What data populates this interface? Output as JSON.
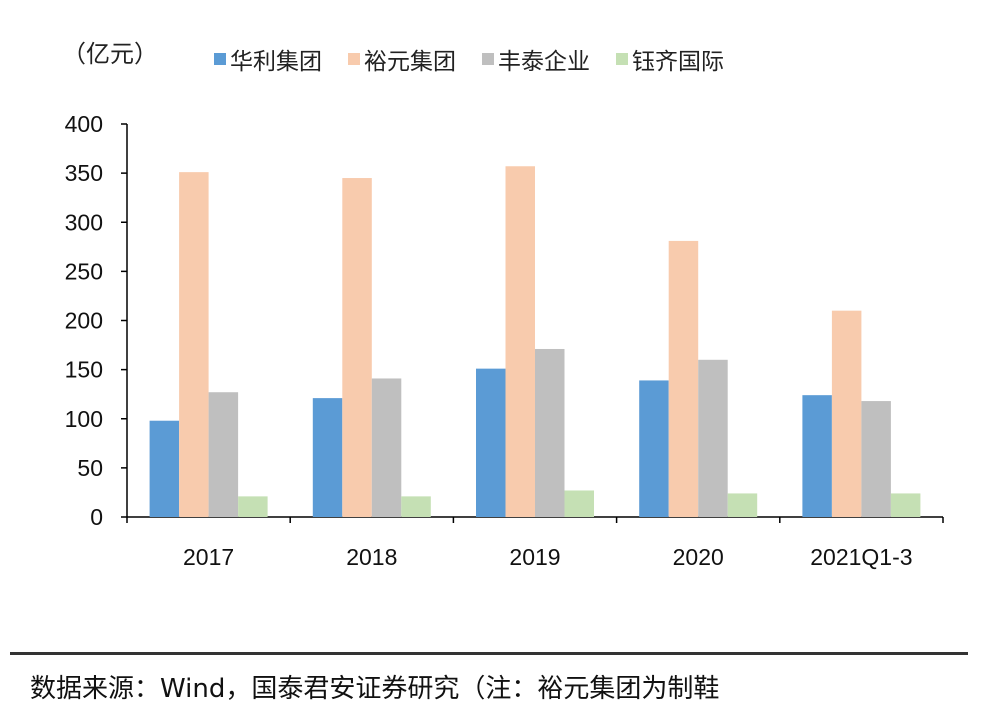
{
  "chart_data": {
    "type": "bar",
    "unit_label": "（亿元）",
    "categories": [
      "2017",
      "2018",
      "2019",
      "2020",
      "2021Q1-3"
    ],
    "series": [
      {
        "name": "华利集团",
        "color": "#5b9bd5",
        "values": [
          98,
          121,
          151,
          139,
          124
        ]
      },
      {
        "name": "裕元集团",
        "color": "#f8cbad",
        "values": [
          351,
          345,
          357,
          281,
          210
        ]
      },
      {
        "name": "丰泰企业",
        "color": "#bfbfbf",
        "values": [
          127,
          141,
          171,
          160,
          118
        ]
      },
      {
        "name": "钰齐国际",
        "color": "#c5e0b4",
        "values": [
          21,
          21,
          27,
          24,
          24
        ]
      }
    ],
    "ylim": [
      0,
      400
    ],
    "yticks": [
      "0",
      "50",
      "100",
      "150",
      "200",
      "250",
      "300",
      "350",
      "400"
    ],
    "legend_position": "top",
    "grid": false
  },
  "footer": {
    "source": "数据来源：Wind，国泰君安证券研究（注：裕元集团为制鞋"
  }
}
